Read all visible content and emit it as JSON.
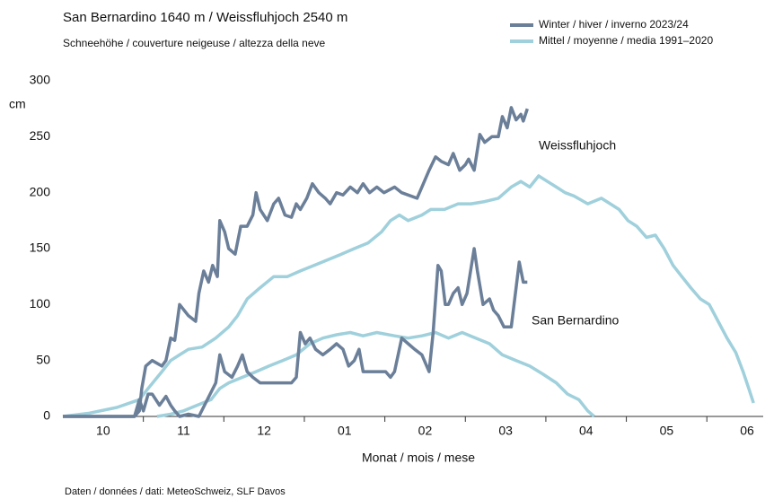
{
  "chart_data": {
    "type": "line",
    "title": "San Bernardino 1640 m  /  Weissfluhjoch 2540 m",
    "subtitle": "Schneehöhe / couverture neigeuse / altezza della neve",
    "y_label": "cm",
    "x_label": "Monat  /  mois  /  mese",
    "source": "Daten / données / dati: MeteoSchweiz, SLF Davos",
    "annotations": [
      "Weissfluhjoch",
      "San Bernardino"
    ],
    "ylim": [
      0,
      300
    ],
    "yticks": [
      0,
      50,
      100,
      150,
      200,
      250,
      300
    ],
    "xlim": [
      10,
      18.7
    ],
    "xticks": [
      {
        "value": 10.5,
        "label": "10"
      },
      {
        "value": 11.5,
        "label": "11"
      },
      {
        "value": 12.5,
        "label": "12"
      },
      {
        "value": 13.5,
        "label": "01"
      },
      {
        "value": 14.5,
        "label": "02"
      },
      {
        "value": 15.5,
        "label": "03"
      },
      {
        "value": 16.5,
        "label": "04"
      },
      {
        "value": 17.5,
        "label": "05"
      },
      {
        "value": 18.5,
        "label": "06"
      }
    ],
    "xminorticks": [
      11,
      12,
      13,
      14,
      15,
      16,
      17,
      18
    ],
    "grid": false,
    "legend": "top-right",
    "series": [
      {
        "name": "Mittel / moyenne / media 1991–2020",
        "color": "#9fd0dc",
        "lines": [
          {
            "x": [
              10.0,
              10.33,
              10.67,
              10.95,
              11.06,
              11.23,
              11.34,
              11.45,
              11.56,
              11.73,
              11.9,
              12.06,
              12.17,
              12.29,
              12.45,
              12.62,
              12.79,
              12.95,
              13.12,
              13.29,
              13.46,
              13.62,
              13.79,
              13.96,
              14.07,
              14.18,
              14.29,
              14.46,
              14.57,
              14.74,
              14.91,
              15.07,
              15.24,
              15.41,
              15.57,
              15.69,
              15.8,
              15.91,
              16.02,
              16.13,
              16.24,
              16.35,
              16.52,
              16.69,
              16.8,
              16.91,
              17.02,
              17.13,
              17.25,
              17.36,
              17.47,
              17.58,
              17.69,
              17.8,
              17.92,
              18.03,
              18.14,
              18.25,
              18.36,
              18.45,
              18.52,
              18.58
            ],
            "values": [
              0,
              3,
              8,
              15,
              25,
              40,
              50,
              55,
              60,
              62,
              70,
              80,
              90,
              105,
              115,
              125,
              125,
              130,
              135,
              140,
              145,
              150,
              155,
              165,
              175,
              180,
              175,
              180,
              185,
              185,
              190,
              190,
              192,
              195,
              205,
              210,
              205,
              215,
              210,
              205,
              200,
              197,
              190,
              195,
              190,
              185,
              175,
              170,
              160,
              162,
              150,
              135,
              125,
              115,
              105,
              100,
              85,
              70,
              57,
              40,
              25,
              12
            ]
          },
          {
            "x": [
              11.17,
              11.34,
              11.5,
              11.67,
              11.84,
              11.95,
              12.06,
              12.23,
              12.4,
              12.56,
              12.73,
              12.9,
              13.07,
              13.23,
              13.4,
              13.57,
              13.73,
              13.9,
              14.12,
              14.29,
              14.46,
              14.63,
              14.79,
              14.96,
              15.13,
              15.3,
              15.46,
              15.63,
              15.8,
              15.96,
              16.13,
              16.27,
              16.41,
              16.52,
              16.6
            ],
            "values": [
              0,
              2,
              5,
              10,
              15,
              25,
              30,
              35,
              40,
              45,
              50,
              55,
              65,
              70,
              73,
              75,
              72,
              75,
              72,
              70,
              72,
              75,
              70,
              75,
              70,
              65,
              55,
              50,
              45,
              38,
              30,
              20,
              15,
              5,
              0
            ]
          }
        ]
      },
      {
        "name": "Winter / hiver / inverno 2023/24",
        "color": "#6b7f99",
        "lines": [
          {
            "x": [
              10.0,
              10.89,
              10.95,
              10.98,
              11.03,
              11.11,
              11.23,
              11.28,
              11.34,
              11.39,
              11.45,
              11.56,
              11.65,
              11.69,
              11.75,
              11.81,
              11.86,
              11.92,
              11.95,
              12.01,
              12.06,
              12.14,
              12.21,
              12.29,
              12.36,
              12.4,
              12.45,
              12.54,
              12.62,
              12.68,
              12.76,
              12.84,
              12.9,
              12.95,
              13.03,
              13.1,
              13.18,
              13.26,
              13.32,
              13.4,
              13.48,
              13.57,
              13.66,
              13.73,
              13.81,
              13.9,
              13.99,
              14.12,
              14.21,
              14.4,
              14.46,
              14.55,
              14.63,
              14.7,
              14.79,
              14.85,
              14.93,
              15.0,
              15.04,
              15.11,
              15.18,
              15.24,
              15.33,
              15.41,
              15.46,
              15.52,
              15.57,
              15.63,
              15.69,
              15.72,
              15.77
            ],
            "values": [
              0,
              0,
              5,
              25,
              45,
              50,
              45,
              50,
              70,
              68,
              100,
              90,
              85,
              110,
              130,
              120,
              135,
              125,
              175,
              165,
              150,
              145,
              170,
              170,
              180,
              200,
              185,
              175,
              190,
              195,
              180,
              178,
              190,
              185,
              195,
              208,
              200,
              195,
              190,
              200,
              198,
              205,
              200,
              208,
              200,
              205,
              200,
              205,
              200,
              195,
              205,
              220,
              232,
              228,
              225,
              235,
              220,
              225,
              230,
              220,
              252,
              245,
              250,
              250,
              268,
              258,
              276,
              265,
              270,
              264,
              275
            ]
          },
          {
            "x": [
              10.0,
              10.89,
              10.95,
              11.0,
              11.06,
              11.11,
              11.2,
              11.28,
              11.34,
              11.39,
              11.45,
              11.56,
              11.69,
              11.9,
              11.95,
              12.01,
              12.1,
              12.17,
              12.23,
              12.29,
              12.36,
              12.45,
              12.56,
              12.84,
              12.9,
              12.95,
              13.01,
              13.07,
              13.14,
              13.23,
              13.32,
              13.4,
              13.48,
              13.55,
              13.62,
              13.68,
              13.73,
              13.85,
              14.01,
              14.07,
              14.12,
              14.21,
              14.29,
              14.37,
              14.46,
              14.55,
              14.6,
              14.66,
              14.7,
              14.75,
              14.79,
              14.85,
              14.91,
              14.96,
              15.02,
              15.11,
              15.15,
              15.22,
              15.3,
              15.35,
              15.41,
              15.48,
              15.57,
              15.63,
              15.67,
              15.72,
              15.77
            ],
            "values": [
              0,
              0,
              15,
              5,
              20,
              20,
              10,
              18,
              10,
              5,
              0,
              2,
              0,
              30,
              55,
              40,
              35,
              45,
              55,
              40,
              35,
              30,
              30,
              30,
              35,
              75,
              65,
              70,
              60,
              55,
              60,
              65,
              60,
              45,
              50,
              60,
              40,
              40,
              40,
              35,
              40,
              70,
              65,
              60,
              55,
              40,
              75,
              135,
              130,
              100,
              100,
              110,
              115,
              100,
              110,
              150,
              130,
              100,
              105,
              95,
              90,
              80,
              80,
              115,
              138,
              120,
              120
            ]
          }
        ]
      }
    ]
  }
}
